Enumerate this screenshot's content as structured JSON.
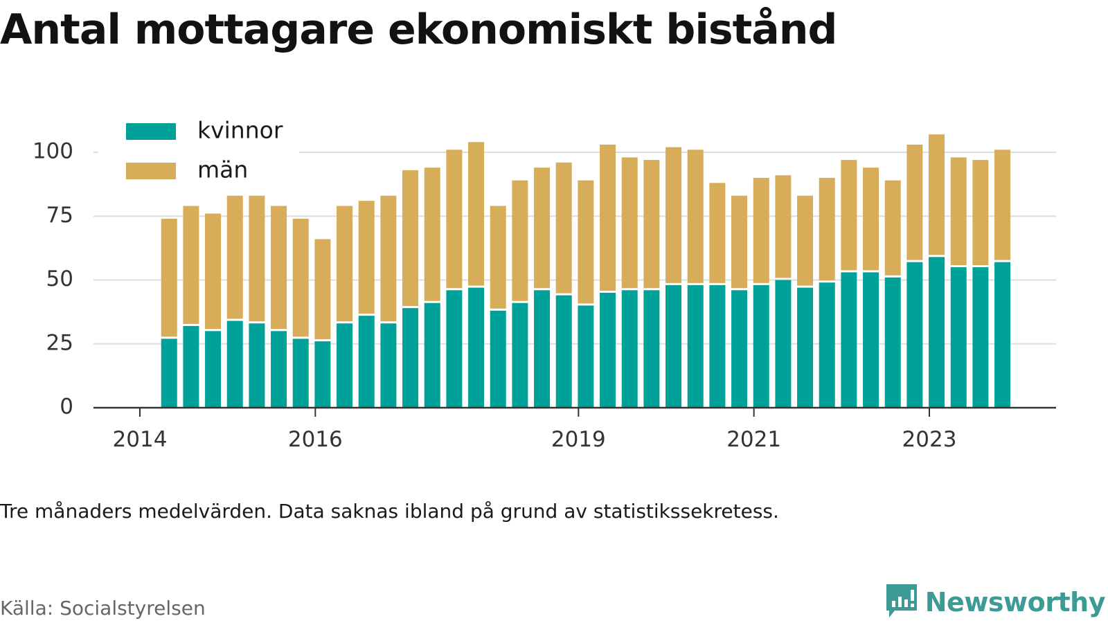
{
  "page": {
    "title": "Antal mottagare ekonomiskt bistånd"
  },
  "footer": {
    "note": "Tre månaders medelvärden. Data saknas ibland på grund av statistikssekretess.",
    "source": "Källa: Socialstyrelsen",
    "brand": "Newsworthy"
  },
  "colors": {
    "kvinnor": "#00a199",
    "man": "#d8ad59",
    "grid": "#dddddd",
    "axis": "#333333"
  },
  "chart_data": {
    "type": "bar",
    "stacked": true,
    "title": "Antal mottagare ekonomiskt bistånd",
    "xlabel": "",
    "ylabel": "",
    "x_ticks": [
      "2014",
      "2016",
      "2019",
      "2021",
      "2023"
    ],
    "x_range": [
      "2014-01",
      "2024-03"
    ],
    "categories": [
      "2014-05",
      "2014-08",
      "2014-11",
      "2015-02",
      "2015-05",
      "2015-08",
      "2015-11",
      "2016-02",
      "2016-05",
      "2016-08",
      "2016-11",
      "2017-02",
      "2017-05",
      "2017-08",
      "2017-11",
      "2018-02",
      "2018-05",
      "2018-08",
      "2018-11",
      "2019-02",
      "2019-05",
      "2019-08",
      "2019-11",
      "2020-02",
      "2020-05",
      "2020-08",
      "2020-11",
      "2021-02",
      "2021-05",
      "2021-08",
      "2021-11",
      "2022-02",
      "2022-05",
      "2022-08",
      "2022-11",
      "2023-02",
      "2023-05",
      "2023-08",
      "2023-11"
    ],
    "series": [
      {
        "name": "kvinnor",
        "values": [
          27,
          32,
          30,
          34,
          33,
          30,
          27,
          26,
          33,
          36,
          33,
          39,
          41,
          46,
          47,
          38,
          41,
          46,
          44,
          40,
          45,
          46,
          46,
          48,
          48,
          48,
          46,
          48,
          50,
          47,
          49,
          53,
          53,
          51,
          57,
          59,
          55,
          55,
          57
        ]
      },
      {
        "name": "män",
        "values": [
          47,
          47,
          46,
          49,
          50,
          49,
          47,
          40,
          46,
          45,
          50,
          54,
          53,
          55,
          57,
          41,
          48,
          48,
          52,
          49,
          58,
          52,
          51,
          54,
          53,
          40,
          37,
          42,
          41,
          36,
          41,
          44,
          41,
          38,
          46,
          48,
          43,
          42,
          44
        ]
      }
    ],
    "ylim": [
      0,
      110
    ],
    "yticks": [
      0,
      25,
      50,
      75,
      100
    ],
    "grid": true,
    "legend": "top-left"
  }
}
